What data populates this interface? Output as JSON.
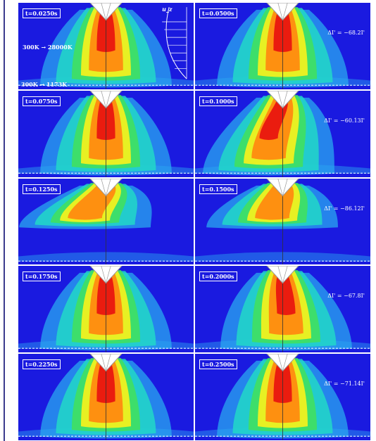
{
  "panels": [
    {
      "time": "t=0.0250s",
      "delta": ""
    },
    {
      "time": "t=0.0500s",
      "delta": "ΔI' = −68.2I'"
    },
    {
      "time": "t=0.0750s",
      "delta": ""
    },
    {
      "time": "t=0.1000s",
      "delta": "ΔI' = −60.13I'"
    },
    {
      "time": "t=0.1250s",
      "delta": ""
    },
    {
      "time": "t=0.1500s",
      "delta": "ΔI' = −86.12I'"
    },
    {
      "time": "t=0.1750s",
      "delta": ""
    },
    {
      "time": "t=0.2000s",
      "delta": "ΔI' = −67.8I'"
    },
    {
      "time": "t=0.2250s",
      "delta": ""
    },
    {
      "time": "t=0.2500s",
      "delta": "ΔI' = −71.14I'"
    }
  ],
  "annotations": {
    "arc_temp": "300K → 28000K",
    "plate_temp": "300K → 1173K",
    "velocity_label": "u_z"
  },
  "colors": {
    "background_field": "#1a1ae0",
    "outer_plume": "#2aa8f0",
    "mid_plume": "#22d8c8",
    "green": "#40e060",
    "yellow": "#f0f020",
    "orange": "#ff8a10",
    "red": "#e81010",
    "frame_line": "#3b3b8e"
  }
}
